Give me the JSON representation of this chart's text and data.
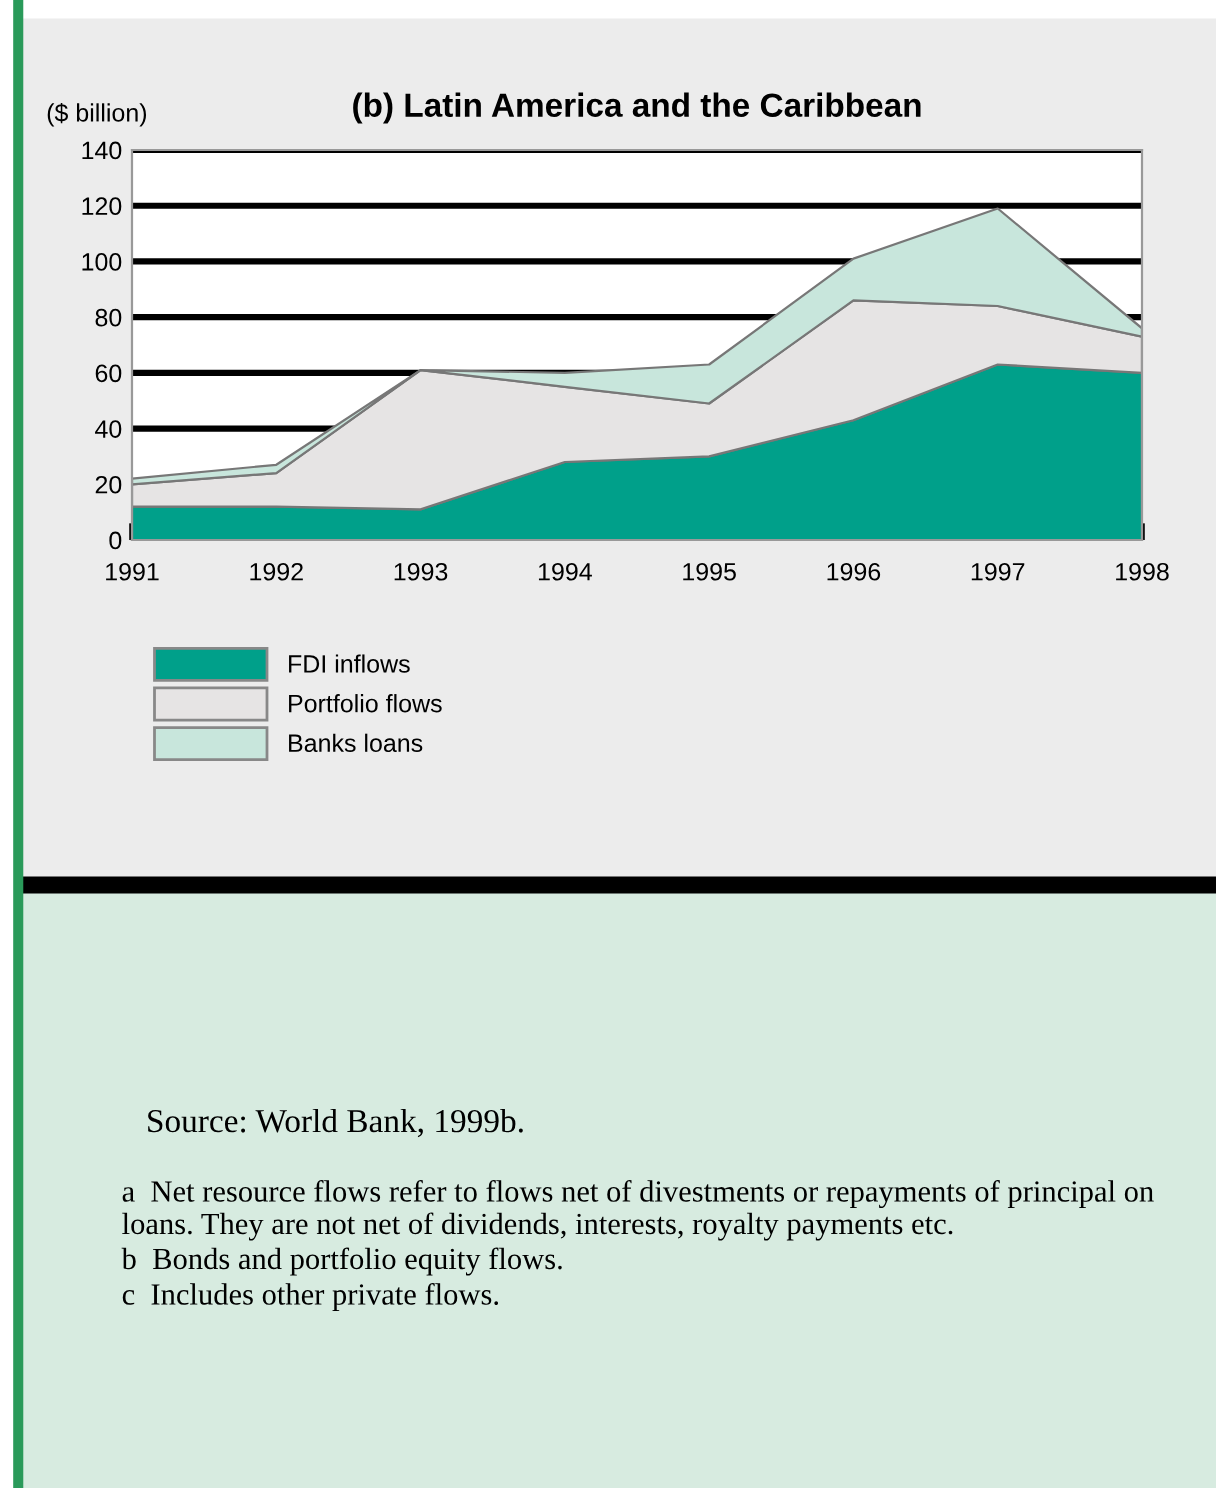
{
  "chart_data": {
    "type": "area",
    "title": "(b) Latin America and the Caribbean",
    "ylabel": "($ billion)",
    "stacked": true,
    "x": [
      1991,
      1992,
      1993,
      1994,
      1995,
      1996,
      1997,
      1998
    ],
    "series": [
      {
        "name": "FDI inflows",
        "color": "#00a08a",
        "values": [
          12,
          12,
          11,
          28,
          30,
          43,
          63,
          60
        ]
      },
      {
        "name": "Portfolio flows",
        "color": "#e6e4e4",
        "values": [
          8,
          12,
          50,
          27,
          19,
          43,
          21,
          13
        ]
      },
      {
        "name": "Banks loans",
        "color": "#c8e6dc",
        "values": [
          2,
          3,
          0,
          5,
          14,
          15,
          35,
          3
        ]
      }
    ],
    "xlim": [
      1991,
      1998
    ],
    "xticks": [
      1991,
      1992,
      1993,
      1994,
      1995,
      1996,
      1997,
      1998
    ],
    "ylim": [
      0,
      140
    ],
    "yticks": [
      0,
      20,
      40,
      60,
      80,
      100,
      120,
      140
    ],
    "grid": "y",
    "legend": "bottom left",
    "annotations": [
      "Source: World Bank, 1999b.",
      "a  Net resource flows refer to flows net of divestments or repayments of principal on loans. They are not net of dividends, interests, royalty payments etc.",
      "b  Bonds and portfolio equity flows.",
      "c  Includes other private flows."
    ]
  }
}
